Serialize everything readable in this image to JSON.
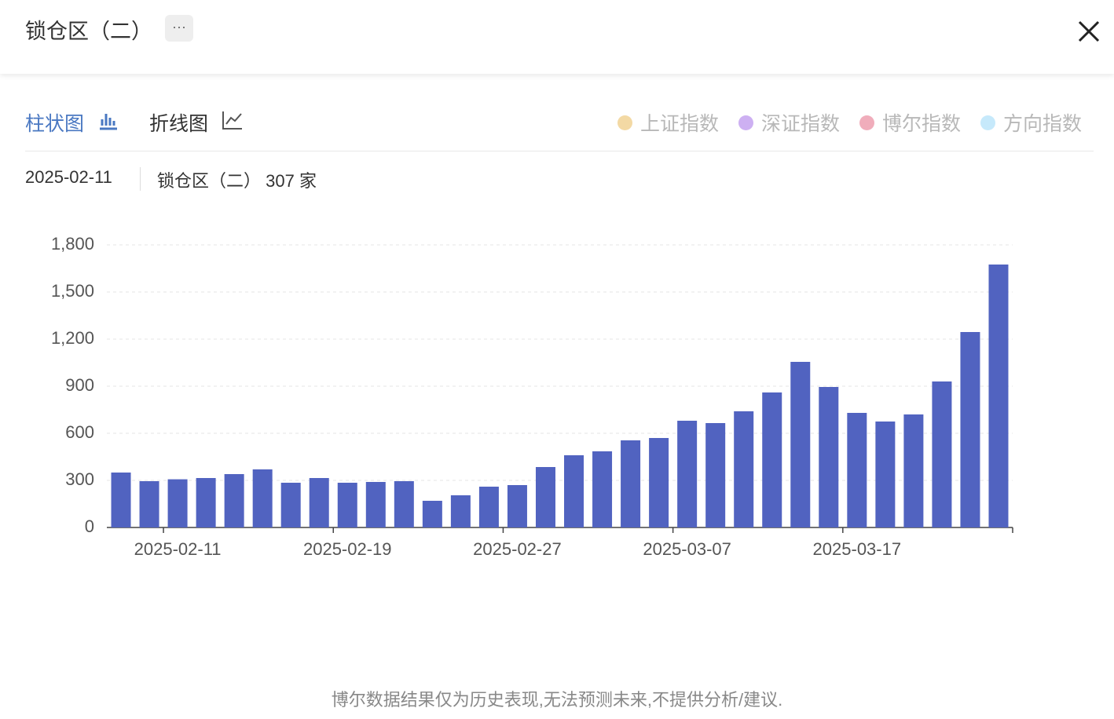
{
  "header": {
    "title": "锁仓区（二）"
  },
  "tabs": [
    "柱状图",
    "折线图"
  ],
  "legend": [
    {
      "name": "上证指数",
      "color": "#f3d9a4"
    },
    {
      "name": "深证指数",
      "color": "#cdb0f2"
    },
    {
      "name": "博尔指数",
      "color": "#f0adbb"
    },
    {
      "name": "方向指数",
      "color": "#c6e9fb"
    }
  ],
  "tooltip": {
    "label": "锁仓区（二）",
    "unit": "家"
  },
  "chart_data": {
    "type": "bar",
    "categories": [
      null,
      null,
      "2025-02-11",
      null,
      null,
      null,
      null,
      null,
      "2025-02-19",
      null,
      null,
      null,
      null,
      null,
      "2025-02-27",
      null,
      null,
      null,
      null,
      null,
      "2025-03-07",
      null,
      null,
      null,
      null,
      null,
      "2025-03-17",
      null,
      null,
      null,
      null,
      null
    ],
    "values": [
      350,
      295,
      307,
      315,
      340,
      370,
      285,
      315,
      285,
      290,
      295,
      170,
      205,
      260,
      270,
      385,
      460,
      485,
      555,
      570,
      680,
      665,
      740,
      860,
      1055,
      895,
      730,
      675,
      720,
      930,
      1245,
      1675
    ],
    "color": "#5163c0",
    "ylim": [
      0,
      1800
    ],
    "yticks": [
      0,
      300,
      600,
      900,
      {
        "value": 1200,
        "label": "1,200"
      },
      {
        "value": 1500,
        "label": "1,500"
      },
      {
        "value": 1800,
        "label": "1,800"
      }
    ],
    "grid": true
  },
  "footer": "博尔数据结果仅为历史表现,无法预测未来,不提供分析/建议."
}
